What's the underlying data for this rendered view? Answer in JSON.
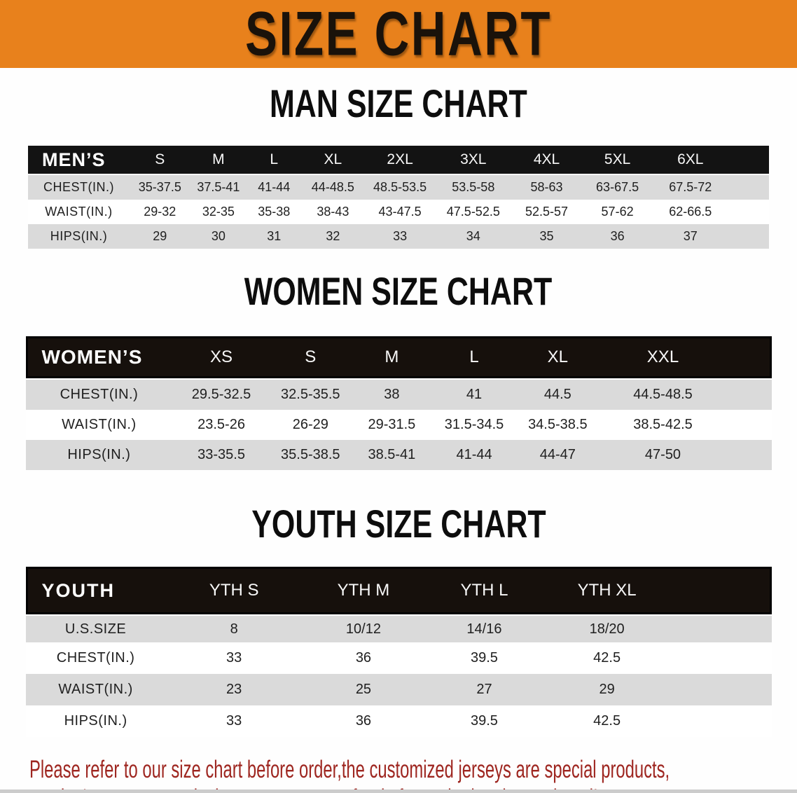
{
  "banner": {
    "title": "SIZE CHART"
  },
  "sections": [
    {
      "id": "men",
      "heading": "MAN SIZE CHART",
      "corner_label": "MEN’S",
      "columns": [
        "S",
        "M",
        "L",
        "XL",
        "2XL",
        "3XL",
        "4XL",
        "5XL",
        "6XL"
      ],
      "rows": [
        {
          "label": "CHEST(IN.)",
          "values": [
            "35-37.5",
            "37.5-41",
            "41-44",
            "44-48.5",
            "48.5-53.5",
            "53.5-58",
            "58-63",
            "63-67.5",
            "67.5-72"
          ]
        },
        {
          "label": "WAIST(IN.)",
          "values": [
            "29-32",
            "32-35",
            "35-38",
            "38-43",
            "43-47.5",
            "47.5-52.5",
            "52.5-57",
            "57-62",
            "62-66.5"
          ]
        },
        {
          "label": "HIPS(IN.)",
          "values": [
            "29",
            "30",
            "31",
            "32",
            "33",
            "34",
            "35",
            "36",
            "37"
          ]
        }
      ]
    },
    {
      "id": "women",
      "heading": "WOMEN SIZE CHART",
      "corner_label": "WOMEN’S",
      "columns": [
        "XS",
        "S",
        "M",
        "L",
        "XL",
        "XXL"
      ],
      "rows": [
        {
          "label": "CHEST(IN.)",
          "values": [
            "29.5-32.5",
            "32.5-35.5",
            "38",
            "41",
            "44.5",
            "44.5-48.5"
          ]
        },
        {
          "label": "WAIST(IN.)",
          "values": [
            "23.5-26",
            "26-29",
            "29-31.5",
            "31.5-34.5",
            "34.5-38.5",
            "38.5-42.5"
          ]
        },
        {
          "label": "HIPS(IN.)",
          "values": [
            "33-35.5",
            "35.5-38.5",
            "38.5-41",
            "41-44",
            "44-47",
            "47-50"
          ]
        }
      ]
    },
    {
      "id": "youth",
      "heading": "YOUTH SIZE CHART",
      "corner_label": "YOUTH",
      "columns": [
        "YTH S",
        "YTH M",
        "YTH L",
        "YTH XL"
      ],
      "rows": [
        {
          "label": "U.S.SIZE",
          "values": [
            "8",
            "10/12",
            "14/16",
            "18/20"
          ]
        },
        {
          "label": "CHEST(IN.)",
          "values": [
            "33",
            "36",
            "39.5",
            "42.5"
          ]
        },
        {
          "label": "WAIST(IN.)",
          "values": [
            "23",
            "25",
            "27",
            "29"
          ]
        },
        {
          "label": "HIPS(IN.)",
          "values": [
            "33",
            "36",
            "39.5",
            "42.5"
          ]
        }
      ]
    }
  ],
  "disclaimer": {
    "line1": "Please refer to our size chart before order,the customized jerseys are special products,",
    "line2": "we don't accept cancel, change, teturn or refund after order has been placed!"
  },
  "colors": {
    "banner_bg": "#E8811C",
    "band_bg": "#141210",
    "row_alt_bg": "#DADADA",
    "disclaimer_text": "#9E2620"
  }
}
